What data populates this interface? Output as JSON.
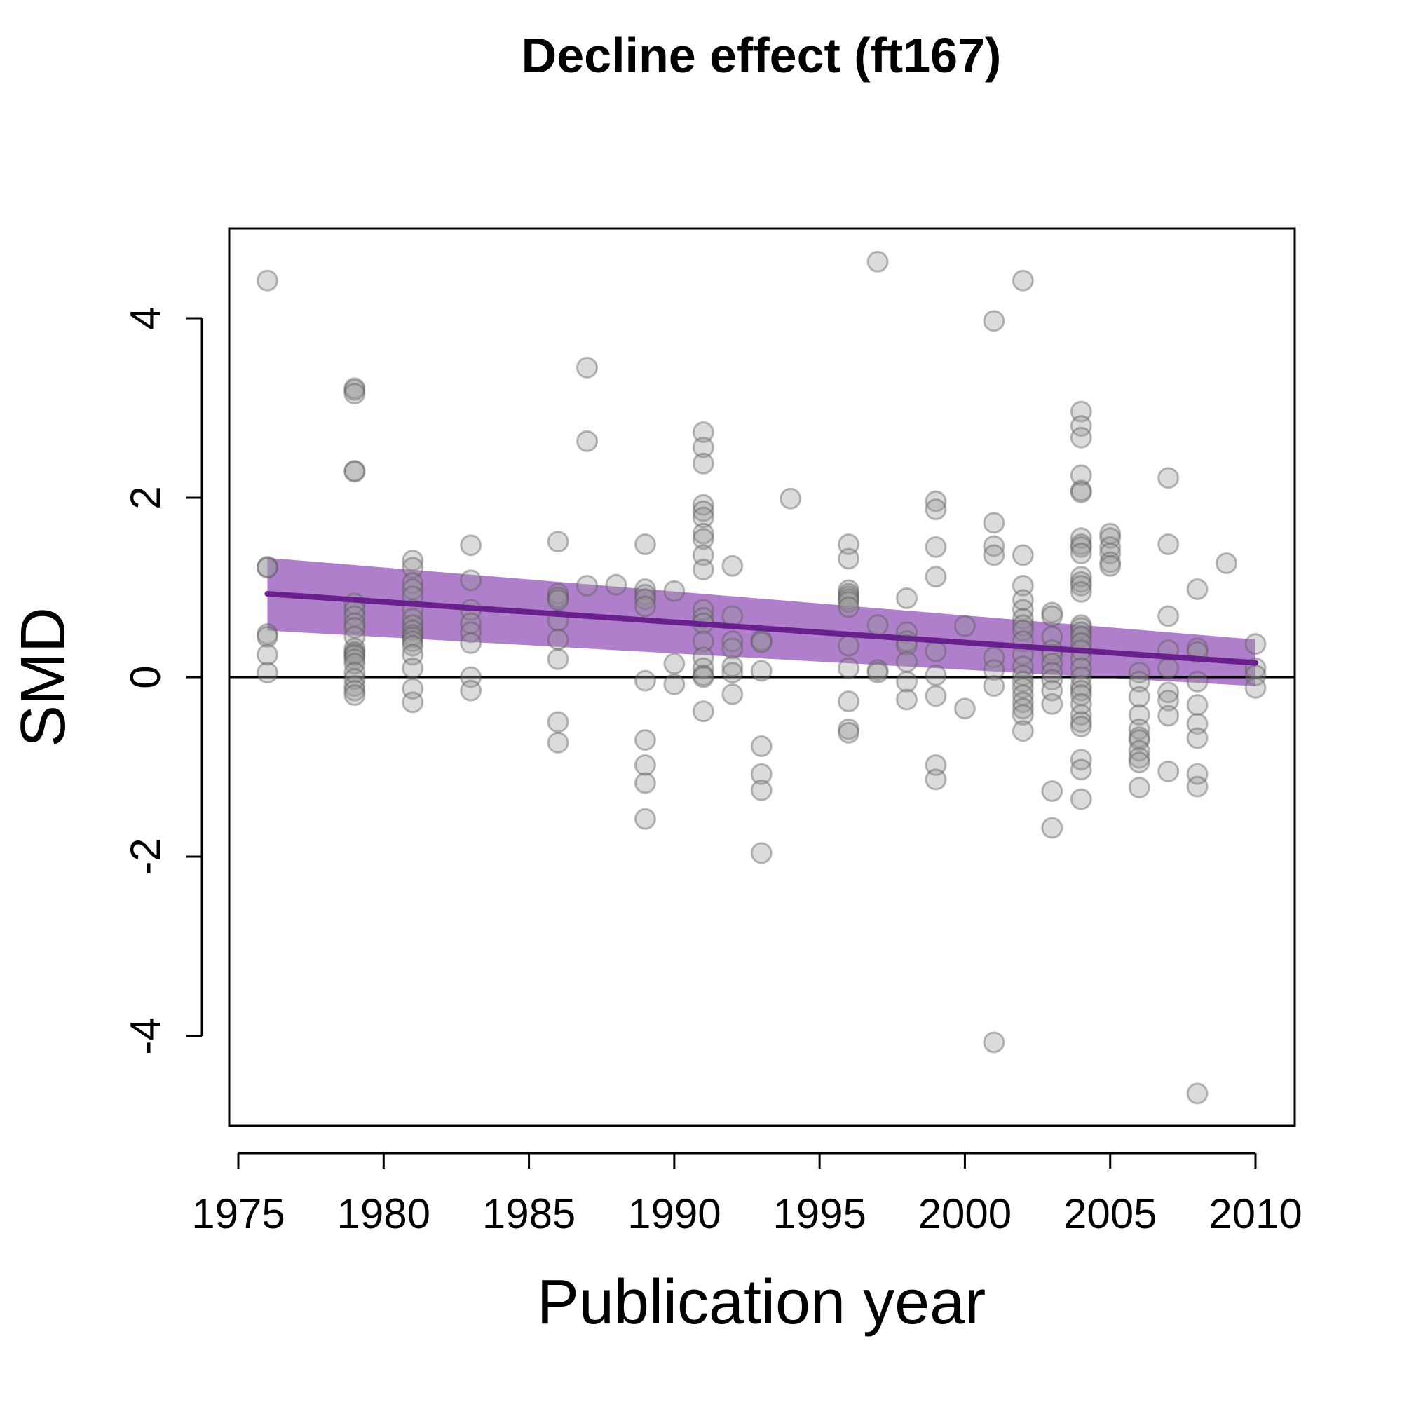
{
  "chart_data": {
    "type": "scatter",
    "title": "Decline effect (ft167)",
    "xlabel": "Publication year",
    "ylabel": "SMD",
    "xlim": [
      1975,
      2010
    ],
    "ylim": [
      -5,
      5
    ],
    "x_ticks": [
      "1975",
      "1980",
      "1985",
      "1990",
      "1995",
      "2000",
      "2005",
      "2010"
    ],
    "y_ticks": [
      "-4",
      "-2",
      "0",
      "2",
      "4"
    ],
    "grid": false,
    "legend": "none",
    "reference_line": {
      "y": 0
    },
    "colors": {
      "points": "#999999",
      "point_fill_opacity": 0.35,
      "trend_line": "#6a1f8f",
      "confidence_band": "#9b5fbf",
      "axis": "#000000"
    },
    "trend": {
      "x": [
        1976,
        2010
      ],
      "y": [
        0.93,
        0.16
      ],
      "ci_lower": [
        0.52,
        -0.1
      ],
      "ci_upper": [
        1.33,
        0.42
      ]
    },
    "points": [
      [
        1976,
        4.42
      ],
      [
        1976,
        1.23
      ],
      [
        1976,
        1.22
      ],
      [
        1976,
        0.48
      ],
      [
        1976,
        0.45
      ],
      [
        1976,
        0.25
      ],
      [
        1976,
        0.05
      ],
      [
        1979,
        3.22
      ],
      [
        1979,
        3.2
      ],
      [
        1979,
        3.16
      ],
      [
        1979,
        2.3
      ],
      [
        1979,
        2.29
      ],
      [
        1979,
        0.82
      ],
      [
        1979,
        0.75
      ],
      [
        1979,
        0.68
      ],
      [
        1979,
        0.6
      ],
      [
        1979,
        0.55
      ],
      [
        1979,
        0.45
      ],
      [
        1979,
        0.32
      ],
      [
        1979,
        0.28
      ],
      [
        1979,
        0.26
      ],
      [
        1979,
        0.24
      ],
      [
        1979,
        0.2
      ],
      [
        1979,
        0.15
      ],
      [
        1979,
        0.05
      ],
      [
        1979,
        -0.02
      ],
      [
        1979,
        -0.1
      ],
      [
        1979,
        -0.15
      ],
      [
        1979,
        -0.2
      ],
      [
        1981,
        1.3
      ],
      [
        1981,
        1.22
      ],
      [
        1981,
        1.05
      ],
      [
        1981,
        0.98
      ],
      [
        1981,
        0.9
      ],
      [
        1981,
        0.75
      ],
      [
        1981,
        0.65
      ],
      [
        1981,
        0.58
      ],
      [
        1981,
        0.52
      ],
      [
        1981,
        0.47
      ],
      [
        1981,
        0.44
      ],
      [
        1981,
        0.4
      ],
      [
        1981,
        0.35
      ],
      [
        1981,
        0.25
      ],
      [
        1981,
        0.1
      ],
      [
        1981,
        -0.13
      ],
      [
        1981,
        -0.28
      ],
      [
        1983,
        1.47
      ],
      [
        1983,
        1.08
      ],
      [
        1983,
        0.75
      ],
      [
        1983,
        0.6
      ],
      [
        1983,
        0.5
      ],
      [
        1983,
        0.38
      ],
      [
        1983,
        0.0
      ],
      [
        1983,
        -0.15
      ],
      [
        1986,
        1.51
      ],
      [
        1986,
        0.93
      ],
      [
        1986,
        0.89
      ],
      [
        1986,
        0.86
      ],
      [
        1986,
        0.63
      ],
      [
        1986,
        0.42
      ],
      [
        1986,
        0.2
      ],
      [
        1986,
        -0.5
      ],
      [
        1986,
        -0.73
      ],
      [
        1987,
        3.45
      ],
      [
        1987,
        2.63
      ],
      [
        1987,
        1.02
      ],
      [
        1988,
        1.03
      ],
      [
        1989,
        1.48
      ],
      [
        1989,
        0.98
      ],
      [
        1989,
        0.92
      ],
      [
        1989,
        0.87
      ],
      [
        1989,
        0.79
      ],
      [
        1989,
        -0.04
      ],
      [
        1989,
        -0.7
      ],
      [
        1989,
        -0.98
      ],
      [
        1989,
        -1.18
      ],
      [
        1989,
        -1.58
      ],
      [
        1990,
        0.96
      ],
      [
        1990,
        0.15
      ],
      [
        1990,
        -0.08
      ],
      [
        1991,
        2.73
      ],
      [
        1991,
        2.56
      ],
      [
        1991,
        2.38
      ],
      [
        1991,
        1.92
      ],
      [
        1991,
        1.85
      ],
      [
        1991,
        1.78
      ],
      [
        1991,
        1.6
      ],
      [
        1991,
        1.54
      ],
      [
        1991,
        1.36
      ],
      [
        1991,
        1.2
      ],
      [
        1991,
        0.75
      ],
      [
        1991,
        0.66
      ],
      [
        1991,
        0.6
      ],
      [
        1991,
        0.4
      ],
      [
        1991,
        0.22
      ],
      [
        1991,
        0.1
      ],
      [
        1991,
        0.02
      ],
      [
        1991,
        0.0
      ],
      [
        1991,
        -0.38
      ],
      [
        1992,
        1.24
      ],
      [
        1992,
        0.68
      ],
      [
        1992,
        0.4
      ],
      [
        1992,
        0.32
      ],
      [
        1992,
        0.12
      ],
      [
        1992,
        0.05
      ],
      [
        1992,
        -0.19
      ],
      [
        1993,
        0.41
      ],
      [
        1993,
        0.39
      ],
      [
        1993,
        0.07
      ],
      [
        1993,
        -0.77
      ],
      [
        1993,
        -1.08
      ],
      [
        1993,
        -1.26
      ],
      [
        1993,
        -1.96
      ],
      [
        1994,
        1.99
      ],
      [
        1996,
        1.48
      ],
      [
        1996,
        1.32
      ],
      [
        1996,
        0.97
      ],
      [
        1996,
        0.93
      ],
      [
        1996,
        0.9
      ],
      [
        1996,
        0.87
      ],
      [
        1996,
        0.84
      ],
      [
        1996,
        0.78
      ],
      [
        1996,
        0.35
      ],
      [
        1996,
        0.1
      ],
      [
        1996,
        -0.27
      ],
      [
        1996,
        -0.58
      ],
      [
        1996,
        -0.62
      ],
      [
        1997,
        4.63
      ],
      [
        1997,
        0.58
      ],
      [
        1997,
        0.08
      ],
      [
        1997,
        0.05
      ],
      [
        1998,
        0.88
      ],
      [
        1998,
        0.5
      ],
      [
        1998,
        0.4
      ],
      [
        1998,
        0.36
      ],
      [
        1998,
        0.17
      ],
      [
        1998,
        -0.05
      ],
      [
        1998,
        -0.25
      ],
      [
        1999,
        1.96
      ],
      [
        1999,
        1.87
      ],
      [
        1999,
        1.45
      ],
      [
        1999,
        1.12
      ],
      [
        1999,
        0.29
      ],
      [
        1999,
        0.02
      ],
      [
        1999,
        -0.21
      ],
      [
        1999,
        -0.98
      ],
      [
        1999,
        -1.14
      ],
      [
        2000,
        0.57
      ],
      [
        2000,
        -0.35
      ],
      [
        2001,
        3.97
      ],
      [
        2001,
        1.72
      ],
      [
        2001,
        1.46
      ],
      [
        2001,
        1.36
      ],
      [
        2001,
        0.22
      ],
      [
        2001,
        0.08
      ],
      [
        2001,
        -0.1
      ],
      [
        2001,
        -4.07
      ],
      [
        2002,
        4.42
      ],
      [
        2002,
        1.36
      ],
      [
        2002,
        1.02
      ],
      [
        2002,
        0.86
      ],
      [
        2002,
        0.75
      ],
      [
        2002,
        0.65
      ],
      [
        2002,
        0.58
      ],
      [
        2002,
        0.52
      ],
      [
        2002,
        0.4
      ],
      [
        2002,
        0.25
      ],
      [
        2002,
        0.12
      ],
      [
        2002,
        0.02
      ],
      [
        2002,
        -0.05
      ],
      [
        2002,
        -0.12
      ],
      [
        2002,
        -0.2
      ],
      [
        2002,
        -0.28
      ],
      [
        2002,
        -0.35
      ],
      [
        2002,
        -0.42
      ],
      [
        2002,
        -0.6
      ],
      [
        2003,
        0.72
      ],
      [
        2003,
        0.68
      ],
      [
        2003,
        0.45
      ],
      [
        2003,
        0.3
      ],
      [
        2003,
        0.25
      ],
      [
        2003,
        0.15
      ],
      [
        2003,
        0.05
      ],
      [
        2003,
        -0.03
      ],
      [
        2003,
        -0.15
      ],
      [
        2003,
        -0.3
      ],
      [
        2003,
        -1.27
      ],
      [
        2003,
        -1.68
      ],
      [
        2004,
        2.96
      ],
      [
        2004,
        2.8
      ],
      [
        2004,
        2.67
      ],
      [
        2004,
        2.25
      ],
      [
        2004,
        2.08
      ],
      [
        2004,
        2.06
      ],
      [
        2004,
        1.55
      ],
      [
        2004,
        1.48
      ],
      [
        2004,
        1.45
      ],
      [
        2004,
        1.38
      ],
      [
        2004,
        1.12
      ],
      [
        2004,
        1.06
      ],
      [
        2004,
        1.02
      ],
      [
        2004,
        0.95
      ],
      [
        2004,
        0.58
      ],
      [
        2004,
        0.55
      ],
      [
        2004,
        0.5
      ],
      [
        2004,
        0.45
      ],
      [
        2004,
        0.38
      ],
      [
        2004,
        0.3
      ],
      [
        2004,
        0.2
      ],
      [
        2004,
        0.1
      ],
      [
        2004,
        0.0
      ],
      [
        2004,
        -0.1
      ],
      [
        2004,
        -0.15
      ],
      [
        2004,
        -0.2
      ],
      [
        2004,
        -0.3
      ],
      [
        2004,
        -0.42
      ],
      [
        2004,
        -0.5
      ],
      [
        2004,
        -0.55
      ],
      [
        2004,
        -0.92
      ],
      [
        2004,
        -1.03
      ],
      [
        2004,
        -1.36
      ],
      [
        2005,
        1.6
      ],
      [
        2005,
        1.55
      ],
      [
        2005,
        1.45
      ],
      [
        2005,
        1.38
      ],
      [
        2005,
        1.28
      ],
      [
        2005,
        1.24
      ],
      [
        2006,
        0.05
      ],
      [
        2006,
        -0.05
      ],
      [
        2006,
        -0.22
      ],
      [
        2006,
        -0.42
      ],
      [
        2006,
        -0.58
      ],
      [
        2006,
        -0.67
      ],
      [
        2006,
        -0.7
      ],
      [
        2006,
        -0.82
      ],
      [
        2006,
        -0.9
      ],
      [
        2006,
        -0.95
      ],
      [
        2006,
        -1.23
      ],
      [
        2007,
        2.22
      ],
      [
        2007,
        1.48
      ],
      [
        2007,
        0.68
      ],
      [
        2007,
        0.3
      ],
      [
        2007,
        0.1
      ],
      [
        2007,
        -0.17
      ],
      [
        2007,
        -0.26
      ],
      [
        2007,
        -0.43
      ],
      [
        2007,
        -1.05
      ],
      [
        2008,
        0.98
      ],
      [
        2008,
        0.32
      ],
      [
        2008,
        0.28
      ],
      [
        2008,
        -0.05
      ],
      [
        2008,
        -0.31
      ],
      [
        2008,
        -0.52
      ],
      [
        2008,
        -0.68
      ],
      [
        2008,
        -1.08
      ],
      [
        2008,
        -1.22
      ],
      [
        2008,
        -4.64
      ],
      [
        2009,
        1.27
      ],
      [
        2010,
        0.37
      ],
      [
        2010,
        0.1
      ],
      [
        2010,
        0.02
      ],
      [
        2010,
        -0.12
      ]
    ]
  }
}
